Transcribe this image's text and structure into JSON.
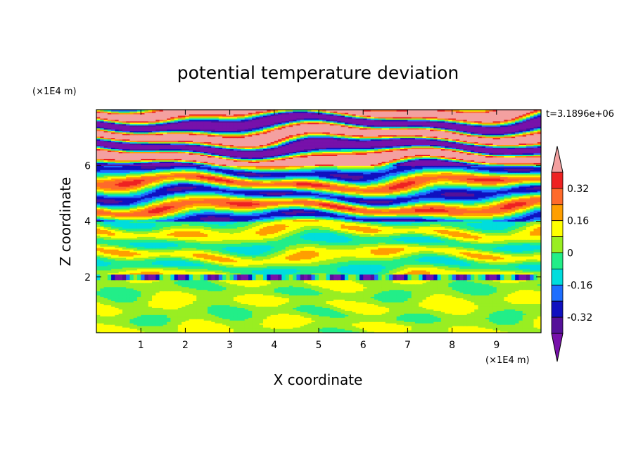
{
  "chart_data": {
    "type": "heatmap",
    "title": "potential temperature deviation",
    "xlabel": "X coordinate",
    "ylabel": "Z coordinate",
    "x_unit": "(×1E4 m)",
    "y_unit": "(×1E4 m)",
    "time_label": "t=3.1896e+06",
    "xlim": [
      0,
      10
    ],
    "ylim": [
      0,
      8
    ],
    "x_ticks": [
      "1",
      "2",
      "3",
      "4",
      "5",
      "6",
      "7",
      "8",
      "9"
    ],
    "y_ticks": [
      "2",
      "4",
      "6"
    ],
    "colorbar": {
      "levels": [
        -0.4,
        -0.32,
        -0.24,
        -0.16,
        -0.08,
        0,
        0.08,
        0.16,
        0.24,
        0.32,
        0.4
      ],
      "labels": [
        "0.32",
        "0.16",
        "0",
        "-0.16",
        "-0.32"
      ],
      "colors_top_to_bottom": [
        "#f4a0a0",
        "#ee2222",
        "#ff6a2a",
        "#ff9f00",
        "#ffff00",
        "#99ee22",
        "#22ee88",
        "#00dddd",
        "#1e6eff",
        "#1010c0",
        "#551199",
        "#7711aa"
      ],
      "extend": "both"
    },
    "layers": [
      {
        "z_range": [
          0,
          2.0
        ],
        "dominant_values": [
          0.0,
          0.08
        ],
        "note": "low-level band, mostly near zero"
      },
      {
        "z_range": [
          2.0,
          4.0
        ],
        "dominant_values": [
          0.0,
          0.08,
          0.16,
          -0.08
        ],
        "note": "weak banded perturbations"
      },
      {
        "z_range": [
          4.0,
          6.0
        ],
        "dominant_values": [
          0.16,
          0.32,
          -0.16,
          -0.32
        ],
        "note": "moderate alternating bands"
      },
      {
        "z_range": [
          6.0,
          8.0
        ],
        "dominant_values": [
          0.4,
          -0.4
        ],
        "note": "strong alternating bands near the top"
      }
    ]
  }
}
